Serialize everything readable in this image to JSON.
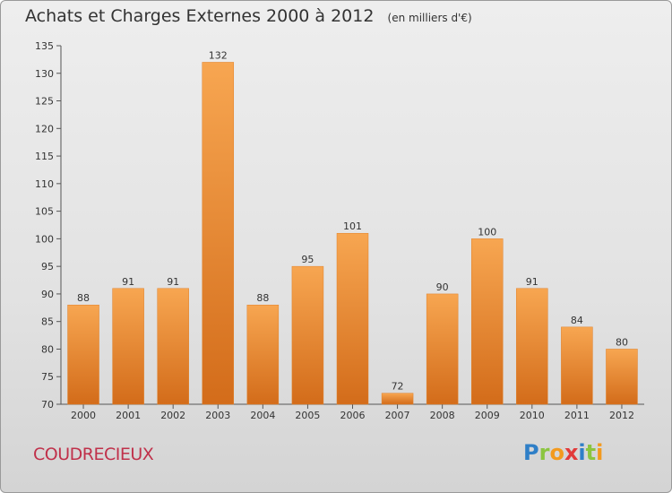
{
  "chart_data": {
    "type": "bar",
    "title": "Achats et Charges Externes 2000 à 2012",
    "subtitle": "(en milliers d'€)",
    "categories": [
      "2000",
      "2001",
      "2002",
      "2003",
      "2004",
      "2005",
      "2006",
      "2007",
      "2008",
      "2009",
      "2010",
      "2011",
      "2012"
    ],
    "values": [
      88,
      91,
      91,
      132,
      88,
      95,
      101,
      72,
      90,
      100,
      91,
      84,
      80
    ],
    "ylim": [
      70,
      135
    ],
    "yticks": [
      70,
      75,
      80,
      85,
      90,
      95,
      100,
      105,
      110,
      115,
      120,
      125,
      130,
      135
    ],
    "grid": false,
    "bar_color": "#f0922f"
  },
  "footer": {
    "place": "COUDRECIEUX",
    "logo": [
      "P",
      "r",
      "o",
      "x",
      "i",
      "t",
      "i"
    ]
  }
}
